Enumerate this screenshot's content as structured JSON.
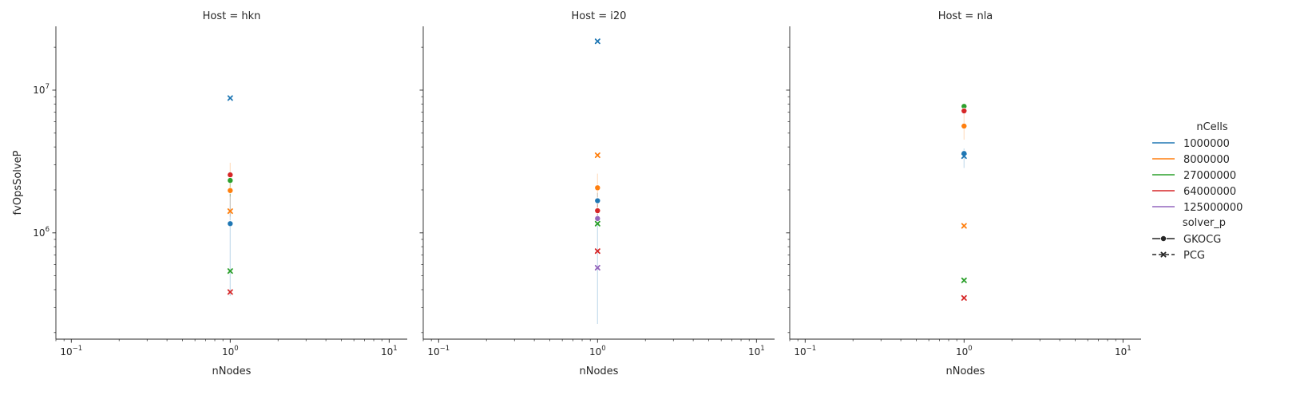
{
  "chart_data": {
    "type": "scatter",
    "facet_variable": "Host",
    "panel_titles": [
      "Host = hkn",
      "Host = i20",
      "Host = nla"
    ],
    "xlabel": "nNodes",
    "ylabel": "fvOpsSolveP",
    "xscale": "log",
    "yscale": "log",
    "xlim": [
      0.08,
      13
    ],
    "ylim": [
      180000,
      28000000
    ],
    "x_tick_labels": [
      {
        "value": 0.1,
        "base": "10",
        "exp": "−1"
      },
      {
        "value": 1,
        "base": "10",
        "exp": "0"
      },
      {
        "value": 10,
        "base": "10",
        "exp": "1"
      }
    ],
    "y_tick_labels": [
      {
        "value": 1000000,
        "base": "10",
        "exp": "6"
      },
      {
        "value": 10000000,
        "base": "10",
        "exp": "7"
      }
    ],
    "grid": false,
    "legend": {
      "placement": "right",
      "hue_title": "nCells",
      "hue_entries": [
        {
          "label": "1000000",
          "color": "#1f77b4"
        },
        {
          "label": "8000000",
          "color": "#ff7f0e"
        },
        {
          "label": "27000000",
          "color": "#2ca02c"
        },
        {
          "label": "64000000",
          "color": "#d62728"
        },
        {
          "label": "125000000",
          "color": "#9467bd"
        }
      ],
      "style_title": "solver_p",
      "style_entries": [
        {
          "label": "GKOCG",
          "marker": "circle",
          "dash": "solid"
        },
        {
          "label": "PCG",
          "marker": "x",
          "dash": "dashed"
        }
      ]
    },
    "panels": [
      {
        "host": "hkn",
        "points": [
          {
            "nCells": "1000000",
            "solver": "PCG",
            "x": 1,
            "y": 8800000
          },
          {
            "nCells": "64000000",
            "solver": "GKOCG",
            "x": 1,
            "y": 2550000
          },
          {
            "nCells": "27000000",
            "solver": "GKOCG",
            "x": 1,
            "y": 2330000
          },
          {
            "nCells": "8000000",
            "solver": "GKOCG",
            "x": 1,
            "y": 1980000
          },
          {
            "nCells": "8000000",
            "solver": "PCG",
            "x": 1,
            "y": 1420000
          },
          {
            "nCells": "1000000",
            "solver": "GKOCG",
            "x": 1,
            "y": 1160000
          },
          {
            "nCells": "27000000",
            "solver": "PCG",
            "x": 1,
            "y": 540000
          },
          {
            "nCells": "64000000",
            "solver": "PCG",
            "x": 1,
            "y": 385000
          }
        ],
        "error_bars": [
          {
            "nCells": "8000000",
            "solver": "GKOCG",
            "x": 1,
            "low": 1300000,
            "high": 3100000
          },
          {
            "nCells": "1000000",
            "solver": "GKOCG",
            "x": 1,
            "low": 360000,
            "high": 1900000
          },
          {
            "nCells": "27000000",
            "solver": "GKOCG",
            "x": 1,
            "low": 1800000,
            "high": 2700000
          }
        ]
      },
      {
        "host": "i20",
        "points": [
          {
            "nCells": "1000000",
            "solver": "PCG",
            "x": 1,
            "y": 22000000
          },
          {
            "nCells": "8000000",
            "solver": "PCG",
            "x": 1,
            "y": 3500000
          },
          {
            "nCells": "8000000",
            "solver": "GKOCG",
            "x": 1,
            "y": 2070000
          },
          {
            "nCells": "1000000",
            "solver": "GKOCG",
            "x": 1,
            "y": 1680000
          },
          {
            "nCells": "64000000",
            "solver": "GKOCG",
            "x": 1,
            "y": 1430000
          },
          {
            "nCells": "125000000",
            "solver": "GKOCG",
            "x": 1,
            "y": 1260000
          },
          {
            "nCells": "27000000",
            "solver": "PCG",
            "x": 1,
            "y": 1160000
          },
          {
            "nCells": "64000000",
            "solver": "PCG",
            "x": 1,
            "y": 745000
          },
          {
            "nCells": "125000000",
            "solver": "PCG",
            "x": 1,
            "y": 570000
          }
        ],
        "error_bars": [
          {
            "nCells": "1000000",
            "solver": "GKOCG",
            "x": 1,
            "low": 230000,
            "high": 1900000
          },
          {
            "nCells": "8000000",
            "solver": "GKOCG",
            "x": 1,
            "low": 1400000,
            "high": 2600000
          },
          {
            "nCells": "64000000",
            "solver": "GKOCG",
            "x": 1,
            "low": 1250000,
            "high": 1600000
          }
        ]
      },
      {
        "host": "nla",
        "points": [
          {
            "nCells": "27000000",
            "solver": "GKOCG",
            "x": 1,
            "y": 7700000
          },
          {
            "nCells": "64000000",
            "solver": "GKOCG",
            "x": 1,
            "y": 7150000
          },
          {
            "nCells": "8000000",
            "solver": "GKOCG",
            "x": 1,
            "y": 5600000
          },
          {
            "nCells": "1000000",
            "solver": "GKOCG",
            "x": 1,
            "y": 3600000
          },
          {
            "nCells": "1000000",
            "solver": "PCG",
            "x": 1,
            "y": 3450000
          },
          {
            "nCells": "8000000",
            "solver": "PCG",
            "x": 1,
            "y": 1120000
          },
          {
            "nCells": "27000000",
            "solver": "PCG",
            "x": 1,
            "y": 465000
          },
          {
            "nCells": "64000000",
            "solver": "PCG",
            "x": 1,
            "y": 350000
          }
        ],
        "error_bars": [
          {
            "nCells": "1000000",
            "solver": "GKOCG",
            "x": 1,
            "low": 2850000,
            "high": 3900000
          },
          {
            "nCells": "8000000",
            "solver": "GKOCG",
            "x": 1,
            "low": 4500000,
            "high": 6800000
          }
        ]
      }
    ]
  }
}
